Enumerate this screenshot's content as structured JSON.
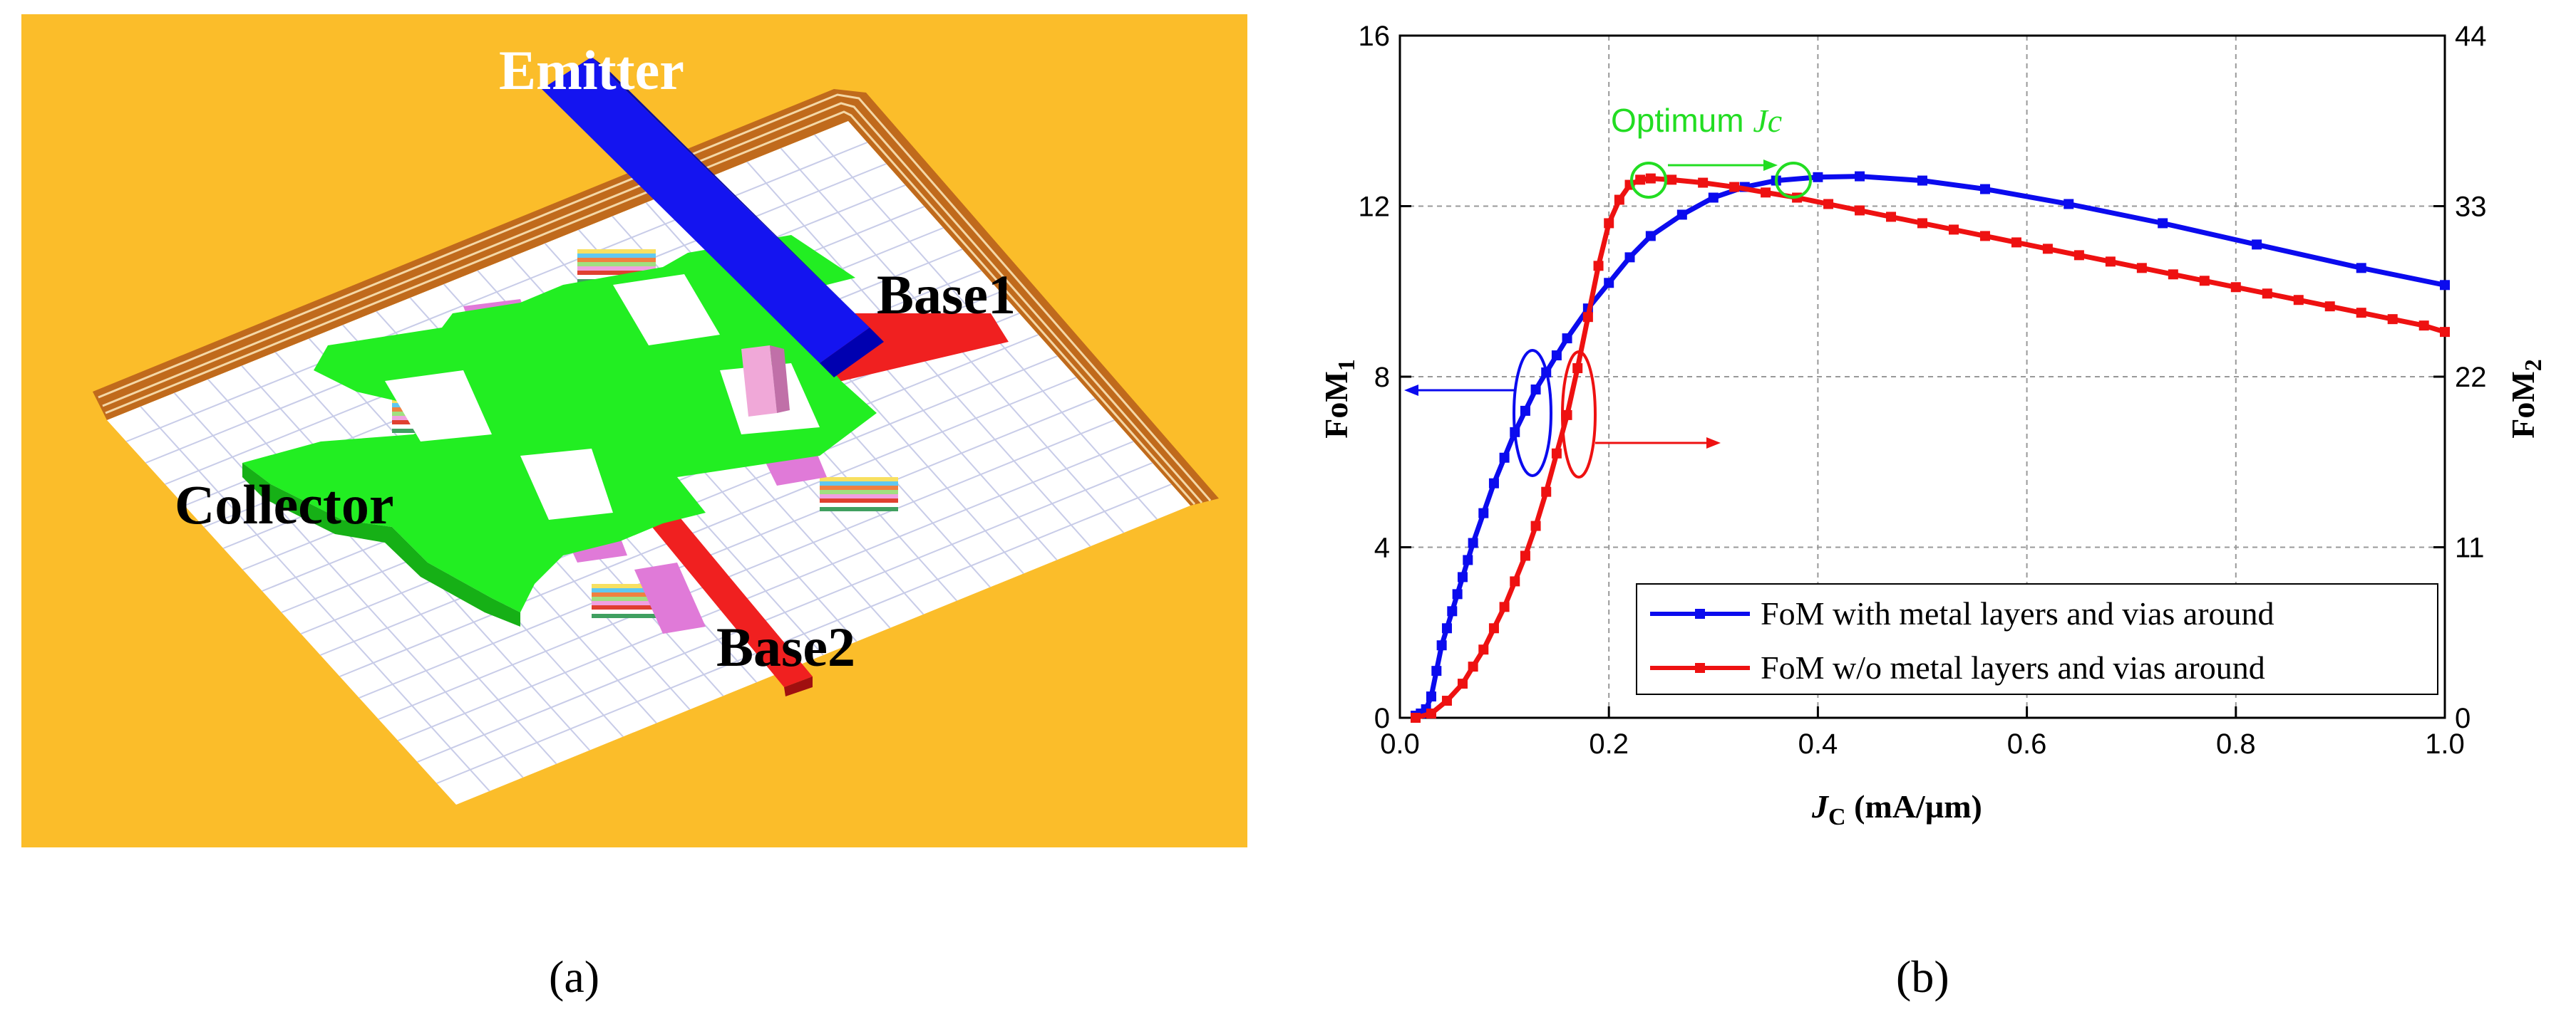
{
  "panel_a": {
    "labels": {
      "emitter": "Emitter",
      "base1": "Base1",
      "base2": "Base2",
      "collector": "Collector"
    },
    "colors": {
      "background": "#fbbd2a",
      "substrate": "#ffffff",
      "grid": "#c8cce8",
      "rim": "#c06a1c",
      "emitter": "#1414f0",
      "collector": "#22ee22",
      "base": "#f02020",
      "via": "#e07ad8"
    }
  },
  "panel_b": {
    "chart_data": {
      "type": "line",
      "xlabel_main": "J",
      "xlabel_sub": "C",
      "xlabel_unit": " (mA/µm)",
      "ylabel_left_main": "FoM",
      "ylabel_left_sub": "1",
      "ylabel_right_main": "FoM",
      "ylabel_right_sub": "2",
      "xlim": [
        0.0,
        1.0
      ],
      "ylim_left": [
        0,
        16
      ],
      "ylim_right": [
        0,
        44
      ],
      "x_ticks": [
        "0.0",
        "0.2",
        "0.4",
        "0.6",
        "0.8",
        "1.0"
      ],
      "y_left_ticks": [
        "0",
        "4",
        "8",
        "12",
        "16"
      ],
      "y_right_ticks": [
        "0",
        "11",
        "22",
        "33",
        "44"
      ],
      "grid": true,
      "legend_position": "bottom-right",
      "annotation_main": "Optimum ",
      "annotation_italic": "Jc",
      "series": [
        {
          "name": "FoM with metal layers and vias around",
          "color": "#0b0bee",
          "axis": "left",
          "x": [
            0.015,
            0.02,
            0.025,
            0.03,
            0.035,
            0.04,
            0.045,
            0.05,
            0.055,
            0.06,
            0.065,
            0.07,
            0.08,
            0.09,
            0.1,
            0.11,
            0.12,
            0.13,
            0.14,
            0.15,
            0.16,
            0.18,
            0.2,
            0.22,
            0.24,
            0.27,
            0.3,
            0.33,
            0.36,
            0.4,
            0.44,
            0.5,
            0.56,
            0.64,
            0.73,
            0.82,
            0.92,
            1.0
          ],
          "y": [
            0.05,
            0.1,
            0.2,
            0.5,
            1.1,
            1.7,
            2.1,
            2.5,
            2.9,
            3.3,
            3.7,
            4.1,
            4.8,
            5.5,
            6.1,
            6.7,
            7.2,
            7.7,
            8.1,
            8.5,
            8.9,
            9.6,
            10.2,
            10.8,
            11.3,
            11.8,
            12.2,
            12.45,
            12.6,
            12.68,
            12.7,
            12.6,
            12.4,
            12.05,
            11.6,
            11.1,
            10.55,
            10.15
          ]
        },
        {
          "name": "FoM w/o metal layers and vias around",
          "color": "#ee1111",
          "axis": "left",
          "x": [
            0.015,
            0.03,
            0.045,
            0.06,
            0.07,
            0.08,
            0.09,
            0.1,
            0.11,
            0.12,
            0.13,
            0.14,
            0.15,
            0.16,
            0.17,
            0.18,
            0.19,
            0.2,
            0.21,
            0.22,
            0.23,
            0.24,
            0.26,
            0.29,
            0.32,
            0.35,
            0.38,
            0.41,
            0.44,
            0.47,
            0.5,
            0.53,
            0.56,
            0.59,
            0.62,
            0.65,
            0.68,
            0.71,
            0.74,
            0.77,
            0.8,
            0.83,
            0.86,
            0.89,
            0.92,
            0.95,
            0.98,
            1.0
          ],
          "y": [
            0,
            0.1,
            0.4,
            0.8,
            1.2,
            1.6,
            2.1,
            2.6,
            3.2,
            3.8,
            4.5,
            5.3,
            6.2,
            7.1,
            8.2,
            9.4,
            10.6,
            11.6,
            12.15,
            12.5,
            12.62,
            12.65,
            12.62,
            12.55,
            12.45,
            12.32,
            12.2,
            12.05,
            11.9,
            11.75,
            11.6,
            11.45,
            11.3,
            11.15,
            11.0,
            10.85,
            10.7,
            10.55,
            10.4,
            10.25,
            10.1,
            9.95,
            9.8,
            9.65,
            9.5,
            9.35,
            9.2,
            9.05
          ]
        }
      ]
    }
  },
  "captions": {
    "a": "(a)",
    "b": "(b)"
  }
}
